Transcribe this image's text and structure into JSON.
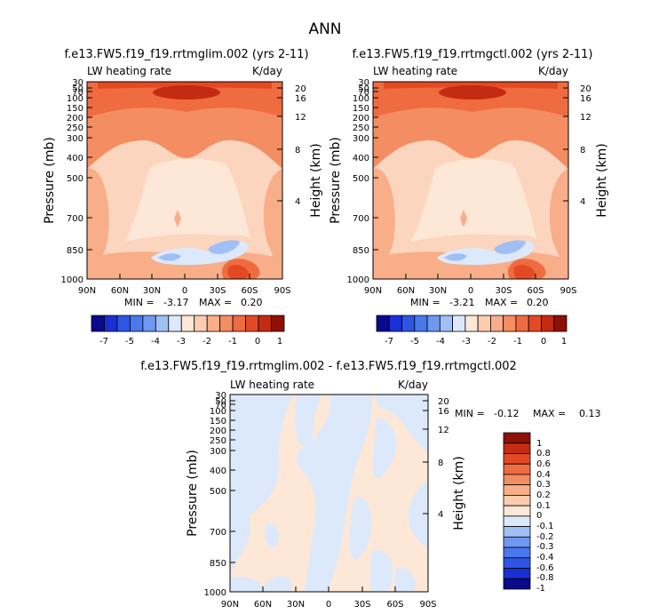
{
  "figure_title": "ANN",
  "units_label": "K/day",
  "chart_data": [
    {
      "type": "heatmap",
      "title": "f.e13.FW5.f19_f19.rrtmglim.002 (yrs 2-11)",
      "subtitle": "LW heating rate",
      "units": "K/day",
      "xlabel": "",
      "ylabel": "Pressure (mb)",
      "ylabel_right": "Height (km)",
      "x_ticks": [
        "90N",
        "60N",
        "30N",
        "0",
        "30S",
        "60S",
        "90S"
      ],
      "y_ticks": [
        "30",
        "50",
        "70",
        "100",
        "150",
        "200",
        "250",
        "300",
        "400",
        "500",
        "700",
        "850",
        "1000"
      ],
      "height_ticks": [
        "20",
        "16",
        "12",
        "8",
        "4"
      ],
      "xlim": [
        90,
        -90
      ],
      "ylim": [
        1000,
        30
      ],
      "min_label": "MIN =",
      "min": "-3.17",
      "max_label": "MAX =",
      "max": "0.20",
      "colorbar_ticks": [
        "-7",
        "-5",
        "-4",
        "-3",
        "-2",
        "-1",
        "0",
        "1"
      ]
    },
    {
      "type": "heatmap",
      "title": "f.e13.FW5.f19_f19.rrtmgctl.002 (yrs 2-11)",
      "subtitle": "LW heating rate",
      "units": "K/day",
      "xlabel": "",
      "ylabel": "Pressure (mb)",
      "ylabel_right": "Height (km)",
      "x_ticks": [
        "90N",
        "60N",
        "30N",
        "0",
        "30S",
        "60S",
        "90S"
      ],
      "y_ticks": [
        "30",
        "50",
        "70",
        "100",
        "150",
        "200",
        "250",
        "300",
        "400",
        "500",
        "700",
        "850",
        "1000"
      ],
      "height_ticks": [
        "20",
        "16",
        "12",
        "8",
        "4"
      ],
      "xlim": [
        90,
        -90
      ],
      "ylim": [
        1000,
        30
      ],
      "min_label": "MIN =",
      "min": "-3.21",
      "max_label": "MAX =",
      "max": "0.20",
      "colorbar_ticks": [
        "-7",
        "-5",
        "-4",
        "-3",
        "-2",
        "-1",
        "0",
        "1"
      ]
    },
    {
      "type": "heatmap",
      "title": "f.e13.FW5.f19_f19.rrtmglim.002 - f.e13.FW5.f19_f19.rrtmgctl.002",
      "subtitle": "LW heating rate",
      "units": "K/day",
      "xlabel": "",
      "ylabel": "Pressure (mb)",
      "ylabel_right": "Height (km)",
      "x_ticks": [
        "90N",
        "60N",
        "30N",
        "0",
        "30S",
        "60S",
        "90S"
      ],
      "y_ticks": [
        "30",
        "50",
        "70",
        "100",
        "150",
        "200",
        "250",
        "300",
        "400",
        "500",
        "700",
        "850",
        "1000"
      ],
      "height_ticks": [
        "20",
        "16",
        "12",
        "8",
        "4"
      ],
      "xlim": [
        90,
        -90
      ],
      "ylim": [
        1000,
        30
      ],
      "min_label": "MIN =",
      "min": "-0.12",
      "max_label": "MAX =",
      "max": "0.13",
      "colorbar_ticks": [
        "1",
        "0.8",
        "0.6",
        "0.4",
        "0.3",
        "0.2",
        "0.1",
        "0",
        "-0.1",
        "-0.2",
        "-0.3",
        "-0.4",
        "-0.6",
        "-0.8",
        "-1"
      ]
    }
  ],
  "colorbars": {
    "top": [
      "#0a0a8c",
      "#1a2fd6",
      "#2f55e6",
      "#4a78ef",
      "#6e98f2",
      "#a0bff5",
      "#dce9fb",
      "#fde7d6",
      "#fbcdb0",
      "#f8ae88",
      "#f48d62",
      "#ef6c40",
      "#e34a24",
      "#c52b12",
      "#8e1006"
    ],
    "bottom": [
      "#8e1006",
      "#c52b12",
      "#e34a24",
      "#ef6c40",
      "#f48d62",
      "#f8ae88",
      "#fbcdb0",
      "#fde7d6",
      "#dce9fb",
      "#a0bff5",
      "#6e98f2",
      "#4a78ef",
      "#2f55e6",
      "#1a2fd6",
      "#0a0a8c"
    ]
  }
}
